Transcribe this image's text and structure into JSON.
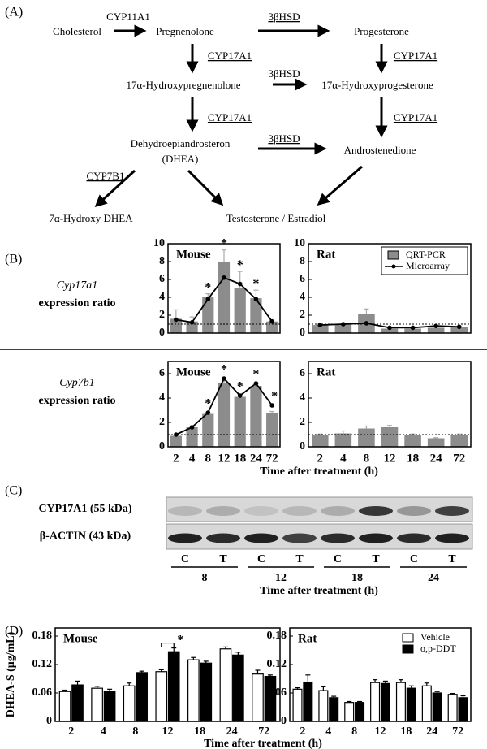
{
  "panel_labels": [
    "(A)",
    "(B)",
    "(C)",
    "(D)"
  ],
  "pathway": {
    "nodes": [
      "Cholesterol",
      "Pregnenolone",
      "Progesterone",
      "17α-Hydroxypregnenolone",
      "17α-Hydroxyprogesterone",
      "Dehydroepiandrosteron",
      "(DHEA)",
      "Androstenedione",
      "7α-Hydroxy DHEA",
      "Testosterone / Estradiol"
    ],
    "enzymes": [
      "CYP11A1",
      "3βHSD",
      "CYP17A1",
      "CYP17A1",
      "3βHSD",
      "CYP17A1",
      "CYP17A1",
      "3βHSD",
      "CYP7B1"
    ]
  },
  "panel_b_rows": [
    {
      "gene": "Cyp17a1",
      "measure": "expression ratio"
    },
    {
      "gene": "Cyp7b1",
      "measure": "expression ratio"
    }
  ],
  "blot": {
    "proteins": [
      "CYP17A1 (55 kDa)",
      "β-ACTIN (43 kDa)"
    ],
    "lanes": [
      "C",
      "T",
      "C",
      "T",
      "C",
      "T",
      "C",
      "T"
    ],
    "times": [
      "8",
      "12",
      "18",
      "24"
    ],
    "xlabel": "Time after treatment (h)"
  },
  "chart_data": [
    {
      "type": "bar_line",
      "title": "Mouse",
      "ylim": [
        0,
        10
      ],
      "yticks": [
        0,
        2,
        4,
        6,
        8,
        10
      ],
      "reference_line": 1,
      "series": [
        {
          "kind": "bar",
          "color": "#8c8c8c",
          "values": [
            1.6,
            1.3,
            4.0,
            8.0,
            5.0,
            3.9,
            1.3
          ],
          "errors": [
            1.0,
            0.5,
            0.4,
            1.3,
            1.9,
            0.9,
            0.1
          ]
        },
        {
          "kind": "line",
          "color": "#000000",
          "values": [
            1.5,
            1.2,
            3.8,
            6.2,
            5.5,
            3.8,
            1.3
          ]
        }
      ],
      "asterisks": [
        null,
        null,
        "*",
        "*",
        "*",
        "*",
        null
      ]
    },
    {
      "type": "bar_line",
      "title": "Rat",
      "ylim": [
        0,
        10
      ],
      "yticks": [
        0,
        2,
        4,
        6,
        8,
        10
      ],
      "reference_line": 1,
      "series": [
        {
          "name": "QRT-PCR",
          "kind": "bar",
          "color": "#8c8c8c",
          "values": [
            0.9,
            1.0,
            2.1,
            0.5,
            0.5,
            0.6,
            0.7
          ],
          "errors": [
            0.1,
            0.1,
            0.6,
            0.1,
            0.1,
            0.1,
            0.1
          ]
        },
        {
          "name": "Microarray",
          "kind": "line",
          "color": "#000000",
          "values": [
            0.9,
            1.0,
            1.1,
            0.6,
            0.6,
            0.8,
            0.7
          ]
        }
      ]
    },
    {
      "type": "bar_line",
      "title": "Mouse",
      "categories": [
        "2",
        "4",
        "8",
        "12",
        "18",
        "24",
        "72"
      ],
      "xlabel": "Time after treatment (h)",
      "ylim": [
        0,
        7
      ],
      "yticks": [
        0,
        2,
        4,
        6
      ],
      "reference_line": 1,
      "series": [
        {
          "kind": "bar",
          "color": "#8c8c8c",
          "values": [
            0.9,
            1.6,
            2.7,
            5.2,
            4.1,
            5.0,
            2.8
          ],
          "errors": [
            0.05,
            0.1,
            0.1,
            0.2,
            0.2,
            0.2,
            0.1
          ]
        },
        {
          "kind": "line",
          "color": "#000000",
          "values": [
            1.0,
            1.6,
            2.8,
            5.6,
            4.2,
            5.2,
            3.4
          ]
        }
      ],
      "asterisks": [
        null,
        null,
        "*",
        "*",
        "*",
        "*",
        "*"
      ]
    },
    {
      "type": "bar_line",
      "title": "Rat",
      "categories": [
        "2",
        "4",
        "8",
        "12",
        "18",
        "24",
        "72"
      ],
      "ylim": [
        0,
        7
      ],
      "yticks": [
        0,
        2,
        4,
        6
      ],
      "reference_line": 1,
      "series": [
        {
          "kind": "bar",
          "color": "#8c8c8c",
          "values": [
            1.0,
            1.1,
            1.5,
            1.6,
            1.0,
            0.7,
            1.0
          ],
          "errors": [
            0.05,
            0.2,
            0.2,
            0.15,
            0.05,
            0.05,
            0.05
          ]
        }
      ]
    },
    {
      "type": "grouped_bar",
      "title": "Mouse",
      "ylabel": "DHEA-S (μg/mL)",
      "xlabel": "Time after treatment (h)",
      "categories": [
        "2",
        "4",
        "8",
        "12",
        "18",
        "24",
        "72"
      ],
      "ylim": [
        0,
        0.18
      ],
      "yticks": [
        0,
        0.06,
        0.12,
        0.18
      ],
      "series": [
        {
          "color": "#ffffff",
          "values": [
            0.063,
            0.07,
            0.075,
            0.105,
            0.13,
            0.153,
            0.1
          ],
          "errors": [
            0.003,
            0.004,
            0.006,
            0.004,
            0.005,
            0.004,
            0.008
          ]
        },
        {
          "color": "#000000",
          "values": [
            0.077,
            0.063,
            0.103,
            0.147,
            0.123,
            0.14,
            0.095
          ],
          "errors": [
            0.008,
            0.005,
            0.003,
            0.008,
            0.004,
            0.006,
            0.003
          ]
        }
      ],
      "asterisks": [
        null,
        null,
        null,
        "*",
        null,
        null,
        null
      ]
    },
    {
      "type": "grouped_bar",
      "title": "Rat",
      "categories": [
        "2",
        "4",
        "8",
        "12",
        "18",
        "24",
        "72"
      ],
      "ylim": [
        0,
        0.18
      ],
      "yticks": [
        0,
        0.06,
        0.12,
        0.18
      ],
      "series": [
        {
          "name": "Vehicle",
          "color": "#ffffff",
          "values": [
            0.068,
            0.065,
            0.04,
            0.082,
            0.082,
            0.075,
            0.057
          ],
          "errors": [
            0.003,
            0.008,
            0.002,
            0.006,
            0.006,
            0.006,
            0.002
          ]
        },
        {
          "name": "o,p-DDT",
          "color": "#000000",
          "values": [
            0.083,
            0.05,
            0.04,
            0.08,
            0.07,
            0.06,
            0.05
          ],
          "errors": [
            0.015,
            0.003,
            0.002,
            0.005,
            0.005,
            0.003,
            0.004
          ]
        }
      ]
    }
  ]
}
